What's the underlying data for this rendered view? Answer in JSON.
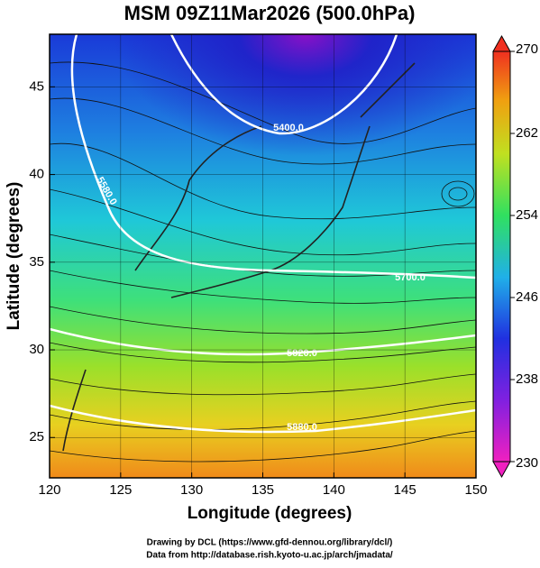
{
  "map": {
    "title": "MSM 09Z11Mar2026 (500.0hPa)",
    "x_label": "Longitude (degrees)",
    "y_label": "Latitude  (degrees)",
    "xlim": [
      120,
      150
    ],
    "xticks": [
      120,
      125,
      130,
      135,
      140,
      145,
      150
    ],
    "ylim": [
      22.7,
      48
    ],
    "yticks": [
      25,
      30,
      35,
      40,
      45
    ],
    "colorbar": {
      "lim": [
        230,
        270
      ],
      "ticks": [
        230,
        238,
        246,
        254,
        262,
        270
      ]
    },
    "contour_labels": [
      "5400.0",
      "5580.0",
      "5700.0",
      "5820.0",
      "5880.0"
    ],
    "credits": [
      "Drawing by DCL (https://www.gfd-dennou.org/library/dcl/)",
      "Data from http://database.rish.kyoto-u.ac.jp/arch/jmadata/"
    ]
  }
}
